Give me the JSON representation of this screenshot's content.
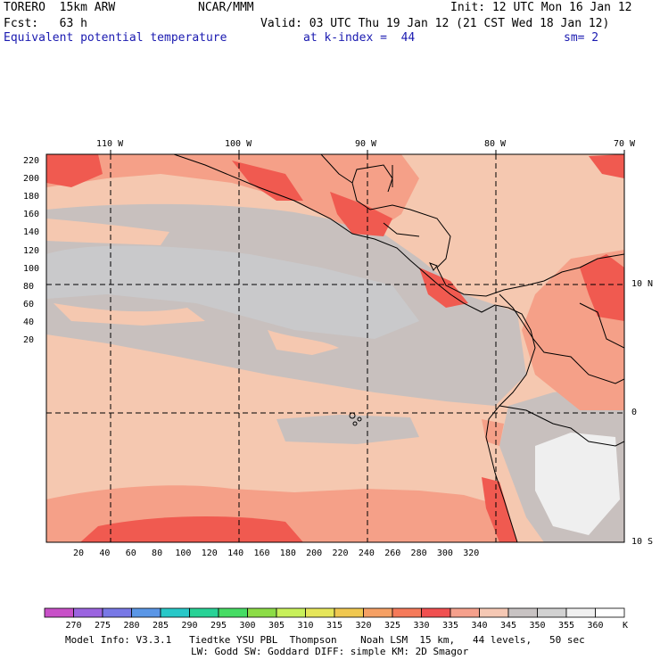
{
  "header": {
    "model": "TORERO  15km ARW",
    "center": "NCAR/MMM",
    "init": "Init: 12 UTC Mon 16 Jan 12",
    "fcst": "Fcst:   63 h",
    "valid": "Valid: 03 UTC Thu 19 Jan 12 (21 CST Wed 18 Jan 12)",
    "field": "Equivalent potential temperature",
    "level": "at k-index =  44",
    "smooth": "sm= 2"
  },
  "map": {
    "lon_labels": [
      "110 W",
      "100 W",
      "90 W",
      "80 W",
      "70 W"
    ],
    "lat_labels": [
      "10 N",
      "0",
      "10 S"
    ],
    "y_ticks": [
      "220",
      "200",
      "180",
      "160",
      "140",
      "120",
      "100",
      "80",
      "60",
      "40",
      "20"
    ],
    "x_ticks": [
      "20",
      "40",
      "60",
      "80",
      "100",
      "120",
      "140",
      "160",
      "180",
      "200",
      "220",
      "240",
      "260",
      "280",
      "300",
      "320"
    ]
  },
  "colorbar": {
    "labels": [
      "270",
      "275",
      "280",
      "285",
      "290",
      "295",
      "300",
      "305",
      "310",
      "315",
      "320",
      "325",
      "330",
      "335",
      "340",
      "345",
      "350",
      "355",
      "360"
    ],
    "unit": "K",
    "colors": [
      "#c850c8",
      "#9b64e0",
      "#7878e6",
      "#5a96e6",
      "#28c8c8",
      "#28d296",
      "#46dc64",
      "#8cdc46",
      "#c8f05a",
      "#e6e65a",
      "#f0c850",
      "#f5a064",
      "#f57a5a",
      "#f05050",
      "#f5a08c",
      "#f5c8b4",
      "#c8c3c3",
      "#d2d2d2",
      "#f0f0f0",
      "#ffffff"
    ]
  },
  "footer": {
    "line1": "Model Info: V3.3.1   Tiedtke YSU PBL  Thompson    Noah LSM  15 km,   44 levels,   50 sec",
    "line2": "LW: Godd SW: Goddard DIFF: simple KM: 2D Smagor"
  },
  "colors": {
    "warm_peach": "#f5c8b0",
    "salmon": "#f5a088",
    "red": "#f05a50",
    "gray": "#c8c0be",
    "lightgray": "#cccccc",
    "white": "#f0f0f0"
  }
}
